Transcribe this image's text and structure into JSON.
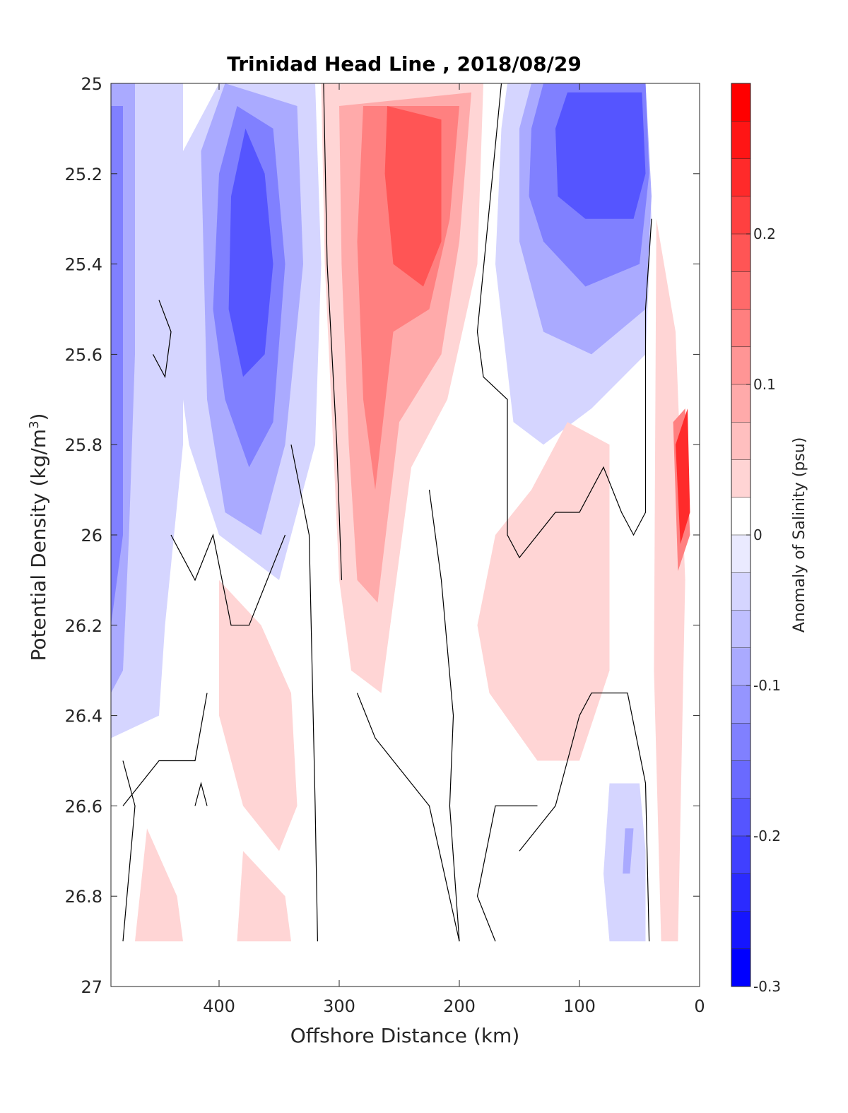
{
  "chart_data": {
    "type": "heatmap",
    "subtype": "filled-contour section",
    "title": "Trinidad Head Line , 2018/08/29",
    "xlabel": "Offshore Distance (km)",
    "ylabel": "Potential Density (kg/m",
    "ylabel_sup": "3",
    "ylabel_close": ")",
    "colorbar_label": "Anomaly of Salinity (psu)",
    "x_reversed": true,
    "y_reversed": true,
    "xlim": [
      0,
      490
    ],
    "ylim": [
      25,
      27
    ],
    "x_ticks": [
      0,
      100,
      200,
      300,
      400
    ],
    "x_tick_labels": [
      "0",
      "100",
      "200",
      "300",
      "400"
    ],
    "y_ticks": [
      25,
      25.2,
      25.4,
      25.6,
      25.8,
      26,
      26.2,
      26.4,
      26.6,
      26.8,
      27
    ],
    "y_tick_labels": [
      "25",
      "25.2",
      "25.4",
      "25.6",
      "25.8",
      "26",
      "26.2",
      "26.4",
      "26.6",
      "26.8",
      "27"
    ],
    "colorbar_range": [
      -0.3,
      0.3
    ],
    "colorbar_ticks": [
      -0.3,
      -0.2,
      -0.1,
      0,
      0.1,
      0.2
    ],
    "colorbar_tick_labels": [
      "-0.3",
      "-0.2",
      "-0.1",
      "0",
      "0.1",
      "0.2"
    ],
    "colorbar_step": 0.025,
    "colorbar_lowest_level": -0.3,
    "colors": {
      "negative": "#0000ff",
      "positive": "#ff0000",
      "zero": "#ffffff",
      "contour": "#000000"
    },
    "grid": false,
    "regions": [
      {
        "name": "offshore fresh core",
        "anomaly": -0.05,
        "points": [
          [
            490,
            25
          ],
          [
            430,
            25
          ],
          [
            430,
            25.8
          ],
          [
            445,
            26.2
          ],
          [
            450,
            26.4
          ],
          [
            490,
            26.45
          ]
        ]
      },
      {
        "name": "offshore fresh core",
        "anomaly": -0.1,
        "points": [
          [
            490,
            25
          ],
          [
            470,
            25
          ],
          [
            470,
            25.6
          ],
          [
            475,
            26
          ],
          [
            480,
            26.3
          ],
          [
            490,
            26.35
          ]
        ]
      },
      {
        "name": "offshore fresh core",
        "anomaly": -0.15,
        "points": [
          [
            490,
            25.05
          ],
          [
            480,
            25.05
          ],
          [
            480,
            26
          ],
          [
            490,
            26.2
          ]
        ]
      },
      {
        "name": "fresh tongue",
        "anomaly": -0.05,
        "points": [
          [
            440,
            25.2
          ],
          [
            400,
            25
          ],
          [
            320,
            25
          ],
          [
            315,
            25.4
          ],
          [
            320,
            25.8
          ],
          [
            350,
            26.1
          ],
          [
            400,
            26.0
          ],
          [
            425,
            25.8
          ],
          [
            440,
            25.5
          ]
        ]
      },
      {
        "name": "fresh tongue",
        "anomaly": -0.1,
        "points": [
          [
            415,
            25.15
          ],
          [
            395,
            25
          ],
          [
            335,
            25.05
          ],
          [
            330,
            25.4
          ],
          [
            345,
            25.8
          ],
          [
            365,
            26
          ],
          [
            395,
            25.95
          ],
          [
            410,
            25.7
          ]
        ]
      },
      {
        "name": "fresh tongue",
        "anomaly": -0.15,
        "points": [
          [
            400,
            25.2
          ],
          [
            385,
            25.05
          ],
          [
            355,
            25.1
          ],
          [
            345,
            25.4
          ],
          [
            355,
            25.75
          ],
          [
            375,
            25.85
          ],
          [
            395,
            25.7
          ],
          [
            405,
            25.5
          ]
        ]
      },
      {
        "name": "fresh tongue",
        "anomaly": -0.2,
        "points": [
          [
            390,
            25.25
          ],
          [
            378,
            25.1
          ],
          [
            362,
            25.2
          ],
          [
            355,
            25.4
          ],
          [
            362,
            25.6
          ],
          [
            380,
            25.65
          ],
          [
            392,
            25.5
          ]
        ]
      },
      {
        "name": "nearshore fresh patch",
        "anomaly": -0.05,
        "points": [
          [
            165,
            25.1
          ],
          [
            160,
            25
          ],
          [
            45,
            25
          ],
          [
            40,
            25.3
          ],
          [
            45,
            25.6
          ],
          [
            90,
            25.72
          ],
          [
            130,
            25.8
          ],
          [
            155,
            25.75
          ],
          [
            170,
            25.4
          ]
        ]
      },
      {
        "name": "nearshore fresh patch",
        "anomaly": -0.1,
        "points": [
          [
            150,
            25.1
          ],
          [
            140,
            25
          ],
          [
            45,
            25
          ],
          [
            40,
            25.25
          ],
          [
            45,
            25.5
          ],
          [
            90,
            25.6
          ],
          [
            130,
            25.55
          ],
          [
            150,
            25.35
          ]
        ]
      },
      {
        "name": "nearshore fresh patch",
        "anomaly": -0.15,
        "points": [
          [
            140,
            25.1
          ],
          [
            130,
            25
          ],
          [
            45,
            25
          ],
          [
            42,
            25.2
          ],
          [
            50,
            25.4
          ],
          [
            95,
            25.45
          ],
          [
            130,
            25.35
          ],
          [
            142,
            25.25
          ]
        ]
      },
      {
        "name": "nearshore fresh patch",
        "anomaly": -0.2,
        "points": [
          [
            120,
            25.1
          ],
          [
            110,
            25.02
          ],
          [
            48,
            25.02
          ],
          [
            45,
            25.2
          ],
          [
            55,
            25.3
          ],
          [
            95,
            25.3
          ],
          [
            118,
            25.25
          ]
        ]
      },
      {
        "name": "deep fresh patch",
        "anomaly": -0.05,
        "points": [
          [
            50,
            26.55
          ],
          [
            75,
            26.55
          ],
          [
            80,
            26.75
          ],
          [
            75,
            26.9
          ],
          [
            45,
            26.9
          ],
          [
            45,
            26.7
          ]
        ]
      },
      {
        "name": "deep fresh patch",
        "anomaly": -0.1,
        "points": [
          [
            55,
            26.65
          ],
          [
            62,
            26.65
          ],
          [
            64,
            26.75
          ],
          [
            58,
            26.75
          ]
        ]
      },
      {
        "name": "saline tongue",
        "anomaly": 0.05,
        "points": [
          [
            315,
            25
          ],
          [
            180,
            25
          ],
          [
            185,
            25.4
          ],
          [
            210,
            25.7
          ],
          [
            240,
            25.85
          ],
          [
            265,
            26.35
          ],
          [
            290,
            26.3
          ],
          [
            300,
            26.1
          ],
          [
            305,
            25.8
          ],
          [
            312,
            25.4
          ]
        ]
      },
      {
        "name": "saline tongue",
        "anomaly": 0.1,
        "points": [
          [
            300,
            25.05
          ],
          [
            190,
            25.02
          ],
          [
            200,
            25.35
          ],
          [
            215,
            25.6
          ],
          [
            250,
            25.75
          ],
          [
            268,
            26.15
          ],
          [
            285,
            26.1
          ],
          [
            292,
            25.8
          ],
          [
            298,
            25.4
          ]
        ]
      },
      {
        "name": "saline tongue",
        "anomaly": 0.15,
        "points": [
          [
            280,
            25.05
          ],
          [
            200,
            25.05
          ],
          [
            208,
            25.3
          ],
          [
            225,
            25.5
          ],
          [
            255,
            25.55
          ],
          [
            270,
            25.9
          ],
          [
            280,
            25.7
          ],
          [
            285,
            25.35
          ]
        ]
      },
      {
        "name": "saline tongue",
        "anomaly": 0.2,
        "points": [
          [
            260,
            25.05
          ],
          [
            215,
            25.08
          ],
          [
            215,
            25.35
          ],
          [
            230,
            25.45
          ],
          [
            255,
            25.4
          ],
          [
            262,
            25.2
          ]
        ]
      },
      {
        "name": "mid-column saline patch",
        "anomaly": 0.05,
        "points": [
          [
            110,
            25.75
          ],
          [
            75,
            25.8
          ],
          [
            75,
            26.3
          ],
          [
            100,
            26.5
          ],
          [
            135,
            26.5
          ],
          [
            175,
            26.35
          ],
          [
            185,
            26.2
          ],
          [
            170,
            26.0
          ],
          [
            140,
            25.9
          ]
        ]
      },
      {
        "name": "lower saline patch",
        "anomaly": 0.05,
        "points": [
          [
            400,
            26.1
          ],
          [
            365,
            26.2
          ],
          [
            340,
            26.35
          ],
          [
            335,
            26.6
          ],
          [
            350,
            26.7
          ],
          [
            380,
            26.6
          ],
          [
            400,
            26.4
          ]
        ]
      },
      {
        "name": "deep saline patch",
        "anomaly": 0.05,
        "points": [
          [
            380,
            26.7
          ],
          [
            345,
            26.8
          ],
          [
            340,
            26.9
          ],
          [
            385,
            26.9
          ]
        ]
      },
      {
        "name": "deep saline patch",
        "anomaly": 0.05,
        "points": [
          [
            460,
            26.65
          ],
          [
            435,
            26.8
          ],
          [
            430,
            26.9
          ],
          [
            470,
            26.9
          ]
        ]
      },
      {
        "name": "coastal saline band",
        "anomaly": 0.05,
        "points": [
          [
            36,
            25.3
          ],
          [
            20,
            25.55
          ],
          [
            12,
            26.1
          ],
          [
            18,
            26.9
          ],
          [
            32,
            26.9
          ],
          [
            38,
            26.3
          ]
        ]
      },
      {
        "name": "coastal saline band",
        "anomaly": 0.15,
        "points": [
          [
            22,
            25.75
          ],
          [
            12,
            25.72
          ],
          [
            8,
            26
          ],
          [
            18,
            26.08
          ]
        ]
      },
      {
        "name": "coastal saline band",
        "anomaly": 0.25,
        "points": [
          [
            20,
            25.8
          ],
          [
            10,
            25.72
          ],
          [
            8,
            25.95
          ],
          [
            16,
            26.02
          ]
        ]
      }
    ],
    "zero_contours": [
      [
        [
          313,
          25
        ],
        [
          310,
          25.4
        ],
        [
          302,
          25.8
        ],
        [
          298,
          26.1
        ]
      ],
      [
        [
          165,
          25
        ],
        [
          185,
          25.55
        ],
        [
          180,
          25.65
        ],
        [
          160,
          25.7
        ],
        [
          160,
          26
        ],
        [
          150,
          26.05
        ],
        [
          120,
          25.95
        ],
        [
          100,
          25.95
        ],
        [
          80,
          25.85
        ],
        [
          65,
          25.95
        ],
        [
          55,
          26.0
        ],
        [
          45,
          25.95
        ],
        [
          45,
          25.5
        ],
        [
          40,
          25.3
        ]
      ],
      [
        [
          340,
          25.8
        ],
        [
          325,
          26.0
        ],
        [
          320,
          26.6
        ],
        [
          318,
          26.9
        ]
      ],
      [
        [
          225,
          25.9
        ],
        [
          215,
          26.1
        ],
        [
          205,
          26.4
        ],
        [
          208,
          26.6
        ],
        [
          200,
          26.9
        ]
      ],
      [
        [
          440,
          26.0
        ],
        [
          420,
          26.1
        ],
        [
          405,
          26.0
        ],
        [
          390,
          26.2
        ],
        [
          375,
          26.2
        ],
        [
          360,
          26.1
        ],
        [
          345,
          26.0
        ]
      ],
      [
        [
          480,
          26.5
        ],
        [
          470,
          26.6
        ],
        [
          480,
          26.9
        ]
      ],
      [
        [
          410,
          26.35
        ],
        [
          420,
          26.5
        ],
        [
          450,
          26.5
        ],
        [
          480,
          26.6
        ]
      ],
      [
        [
          285,
          26.35
        ],
        [
          270,
          26.45
        ],
        [
          255,
          26.5
        ],
        [
          225,
          26.6
        ],
        [
          200,
          26.9
        ]
      ],
      [
        [
          150,
          26.7
        ],
        [
          120,
          26.6
        ],
        [
          100,
          26.4
        ],
        [
          90,
          26.35
        ],
        [
          70,
          26.35
        ],
        [
          60,
          26.35
        ],
        [
          45,
          26.55
        ],
        [
          42,
          26.9
        ]
      ],
      [
        [
          135,
          26.6
        ],
        [
          170,
          26.6
        ],
        [
          185,
          26.8
        ],
        [
          170,
          26.9
        ]
      ],
      [
        [
          450,
          25.48
        ],
        [
          440,
          25.55
        ],
        [
          445,
          25.65
        ],
        [
          455,
          25.6
        ]
      ],
      [
        [
          410,
          26.6
        ],
        [
          415,
          26.55
        ],
        [
          420,
          26.6
        ]
      ]
    ]
  }
}
